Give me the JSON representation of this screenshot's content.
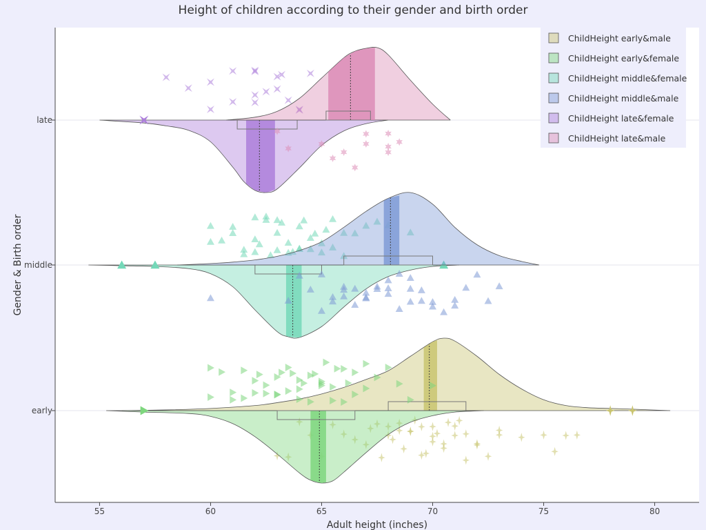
{
  "chart_data": {
    "type": "violin",
    "title": "Height of children according to their gender and birth order",
    "xlabel": "Adult height (inches)",
    "ylabel": "Gender & Birth order",
    "xlim": [
      53,
      82
    ],
    "x_ticks": [
      55,
      60,
      65,
      70,
      75,
      80
    ],
    "x_tick_labels": [
      "55",
      "60",
      "65",
      "70",
      "75",
      "80"
    ],
    "categories": [
      "early",
      "middle",
      "late"
    ],
    "grid": true,
    "legend_position": "top-right",
    "colors": {
      "background": "#eeeefc",
      "plot_background": "#ffffff",
      "early_male": "#c9c470",
      "early_female": "#7ed67e",
      "middle_female": "#74d8b8",
      "middle_male": "#7f9bd6",
      "late_female": "#ad7fdb",
      "late_male": "#dc8cb6"
    },
    "series": [
      {
        "name": "ChildHeight early&male",
        "category": "early",
        "side": "positive",
        "color_key": "early_male",
        "marker": "diamond-tall",
        "median": 69.85,
        "q1": 68.0,
        "q3": 71.5,
        "mean": 69.85,
        "mean_ci": [
          69.6,
          70.2
        ],
        "outliers": [
          78.0,
          79.0
        ],
        "values": [
          63.0,
          63.5,
          64.0,
          64.5,
          65.0,
          65.5,
          66.0,
          66.5,
          67.0,
          67.2,
          67.5,
          67.7,
          68.0,
          68.0,
          68.2,
          68.5,
          68.5,
          68.7,
          69.0,
          69.0,
          69.2,
          69.5,
          69.5,
          69.7,
          70.0,
          70.0,
          70.0,
          70.2,
          70.5,
          70.5,
          70.7,
          71.0,
          71.0,
          71.2,
          71.5,
          71.5,
          72.0,
          72.0,
          72.5,
          73.0,
          73.0,
          74.0,
          75.0,
          75.5,
          76.0,
          76.5,
          78.0,
          79.0
        ],
        "kde_x": [
          56.0,
          58.0,
          60.0,
          62.0,
          63.0,
          64.0,
          65.0,
          66.0,
          67.0,
          68.0,
          69.0,
          70.0,
          70.5,
          71.0,
          72.0,
          73.0,
          74.0,
          75.0,
          76.0,
          77.0,
          78.0,
          79.0,
          80.7
        ],
        "kde_y": [
          0.0,
          0.01,
          0.03,
          0.07,
          0.11,
          0.16,
          0.23,
          0.32,
          0.43,
          0.55,
          0.75,
          0.95,
          1.0,
          0.96,
          0.75,
          0.5,
          0.3,
          0.15,
          0.07,
          0.04,
          0.03,
          0.02,
          0.0
        ]
      },
      {
        "name": "ChildHeight early&female",
        "category": "early",
        "side": "negative",
        "color_key": "early_female",
        "marker": "triangle-right",
        "median": 64.9,
        "q1": 63.0,
        "q3": 66.5,
        "mean": 64.9,
        "mean_ci": [
          64.5,
          65.2
        ],
        "outliers": [
          57.0
        ],
        "values": [
          60.0,
          60.0,
          60.5,
          61.0,
          61.0,
          61.5,
          61.5,
          62.0,
          62.0,
          62.2,
          62.5,
          62.5,
          63.0,
          63.0,
          63.0,
          63.2,
          63.5,
          63.5,
          63.7,
          64.0,
          64.0,
          64.0,
          64.2,
          64.5,
          64.5,
          64.7,
          65.0,
          65.0,
          65.0,
          65.2,
          65.5,
          65.5,
          65.7,
          66.0,
          66.0,
          66.2,
          66.5,
          66.5,
          67.0,
          67.0,
          67.5,
          68.0,
          68.5,
          69.0,
          70.0,
          57.0
        ],
        "kde_x": [
          55.3,
          57.0,
          59.0,
          60.0,
          61.0,
          62.0,
          63.0,
          64.0,
          64.5,
          65.0,
          65.5,
          66.0,
          67.0,
          68.0,
          69.0,
          70.0,
          71.0,
          72.3
        ],
        "kde_y": [
          0.0,
          0.02,
          0.04,
          0.08,
          0.18,
          0.36,
          0.6,
          0.86,
          0.96,
          1.0,
          0.97,
          0.85,
          0.58,
          0.33,
          0.16,
          0.07,
          0.02,
          0.0
        ]
      },
      {
        "name": "ChildHeight middle&female",
        "category": "middle",
        "side": "negative",
        "color_key": "middle_female",
        "marker": "triangle-up",
        "median": 63.7,
        "q1": 62.0,
        "q3": 65.0,
        "mean": 63.7,
        "mean_ci": [
          63.4,
          64.1
        ],
        "outliers": [
          56.0,
          57.5,
          70.5
        ],
        "values": [
          60.0,
          60.0,
          60.5,
          61.0,
          61.0,
          61.5,
          61.5,
          62.0,
          62.0,
          62.0,
          62.2,
          62.5,
          62.5,
          62.7,
          63.0,
          63.0,
          63.0,
          63.2,
          63.5,
          63.5,
          63.7,
          64.0,
          64.0,
          64.0,
          64.2,
          64.5,
          64.5,
          64.7,
          65.0,
          65.0,
          65.2,
          65.5,
          65.5,
          66.0,
          66.0,
          66.5,
          67.0,
          67.5,
          68.0,
          69.0,
          56.0,
          57.5,
          70.5
        ],
        "kde_x": [
          54.5,
          56.0,
          57.5,
          59.0,
          60.0,
          61.0,
          62.0,
          63.0,
          63.5,
          64.0,
          65.0,
          66.0,
          67.0,
          68.0,
          69.0,
          70.0,
          71.2
        ],
        "kde_y": [
          0.0,
          0.01,
          0.02,
          0.05,
          0.12,
          0.3,
          0.62,
          0.92,
          0.99,
          1.0,
          0.85,
          0.58,
          0.33,
          0.16,
          0.07,
          0.02,
          0.0
        ]
      },
      {
        "name": "ChildHeight middle&male",
        "category": "middle",
        "side": "positive",
        "color_key": "middle_male",
        "marker": "triangle-up",
        "median": 68.1,
        "q1": 66.0,
        "q3": 70.0,
        "mean": 68.1,
        "mean_ci": [
          67.8,
          68.5
        ],
        "outliers": [],
        "values": [
          60.0,
          63.5,
          64.0,
          64.5,
          65.0,
          65.0,
          65.5,
          65.5,
          66.0,
          66.0,
          66.0,
          66.5,
          66.5,
          67.0,
          67.0,
          67.0,
          67.5,
          67.5,
          68.0,
          68.0,
          68.0,
          68.5,
          68.5,
          69.0,
          69.0,
          69.0,
          69.5,
          69.5,
          70.0,
          70.0,
          70.5,
          71.0,
          71.0,
          71.5,
          72.0,
          72.5,
          73.0
        ],
        "kde_x": [
          58.5,
          60.0,
          61.0,
          62.0,
          63.0,
          64.0,
          65.0,
          66.0,
          67.0,
          68.0,
          69.0,
          70.0,
          71.0,
          72.0,
          73.0,
          74.0,
          74.8
        ],
        "kde_y": [
          0.0,
          0.02,
          0.04,
          0.07,
          0.12,
          0.2,
          0.32,
          0.52,
          0.74,
          0.92,
          1.0,
          0.84,
          0.52,
          0.28,
          0.13,
          0.05,
          0.0
        ]
      },
      {
        "name": "ChildHeight late&female",
        "category": "late",
        "side": "negative",
        "color_key": "late_female",
        "marker": "star-4",
        "median": 62.2,
        "q1": 61.2,
        "q3": 63.9,
        "mean": 62.2,
        "mean_ci": [
          61.6,
          62.9
        ],
        "outliers": [
          57.0
        ],
        "values": [
          57.0,
          57.0,
          58.0,
          59.0,
          60.0,
          60.0,
          61.0,
          61.0,
          62.0,
          62.0,
          62.0,
          62.0,
          62.5,
          63.0,
          63.0,
          63.2,
          63.5,
          64.0,
          64.0,
          64.5
        ],
        "kde_x": [
          55.0,
          57.0,
          58.0,
          59.0,
          60.0,
          61.0,
          61.5,
          62.0,
          62.5,
          63.0,
          64.0,
          65.0,
          66.0,
          67.0,
          68.0
        ],
        "kde_y": [
          0.0,
          0.04,
          0.08,
          0.14,
          0.3,
          0.65,
          0.85,
          0.97,
          1.0,
          0.95,
          0.66,
          0.35,
          0.15,
          0.05,
          0.0
        ]
      },
      {
        "name": "ChildHeight late&male",
        "category": "late",
        "side": "positive",
        "color_key": "late_male",
        "marker": "star-6",
        "median": 66.3,
        "q1": 65.2,
        "q3": 67.2,
        "mean": 66.3,
        "mean_ci": [
          65.3,
          67.4
        ],
        "outliers": [],
        "values": [
          63.0,
          63.5,
          65.0,
          65.5,
          66.0,
          66.5,
          67.0,
          67.0,
          68.0,
          68.0,
          68.0,
          68.5
        ],
        "kde_x": [
          60.7,
          62.0,
          63.0,
          64.0,
          65.0,
          66.0,
          66.5,
          67.0,
          67.5,
          68.0,
          69.0,
          70.0,
          70.8
        ],
        "kde_y": [
          0.0,
          0.04,
          0.12,
          0.3,
          0.58,
          0.86,
          0.95,
          0.99,
          1.0,
          0.9,
          0.55,
          0.22,
          0.0
        ]
      }
    ]
  }
}
